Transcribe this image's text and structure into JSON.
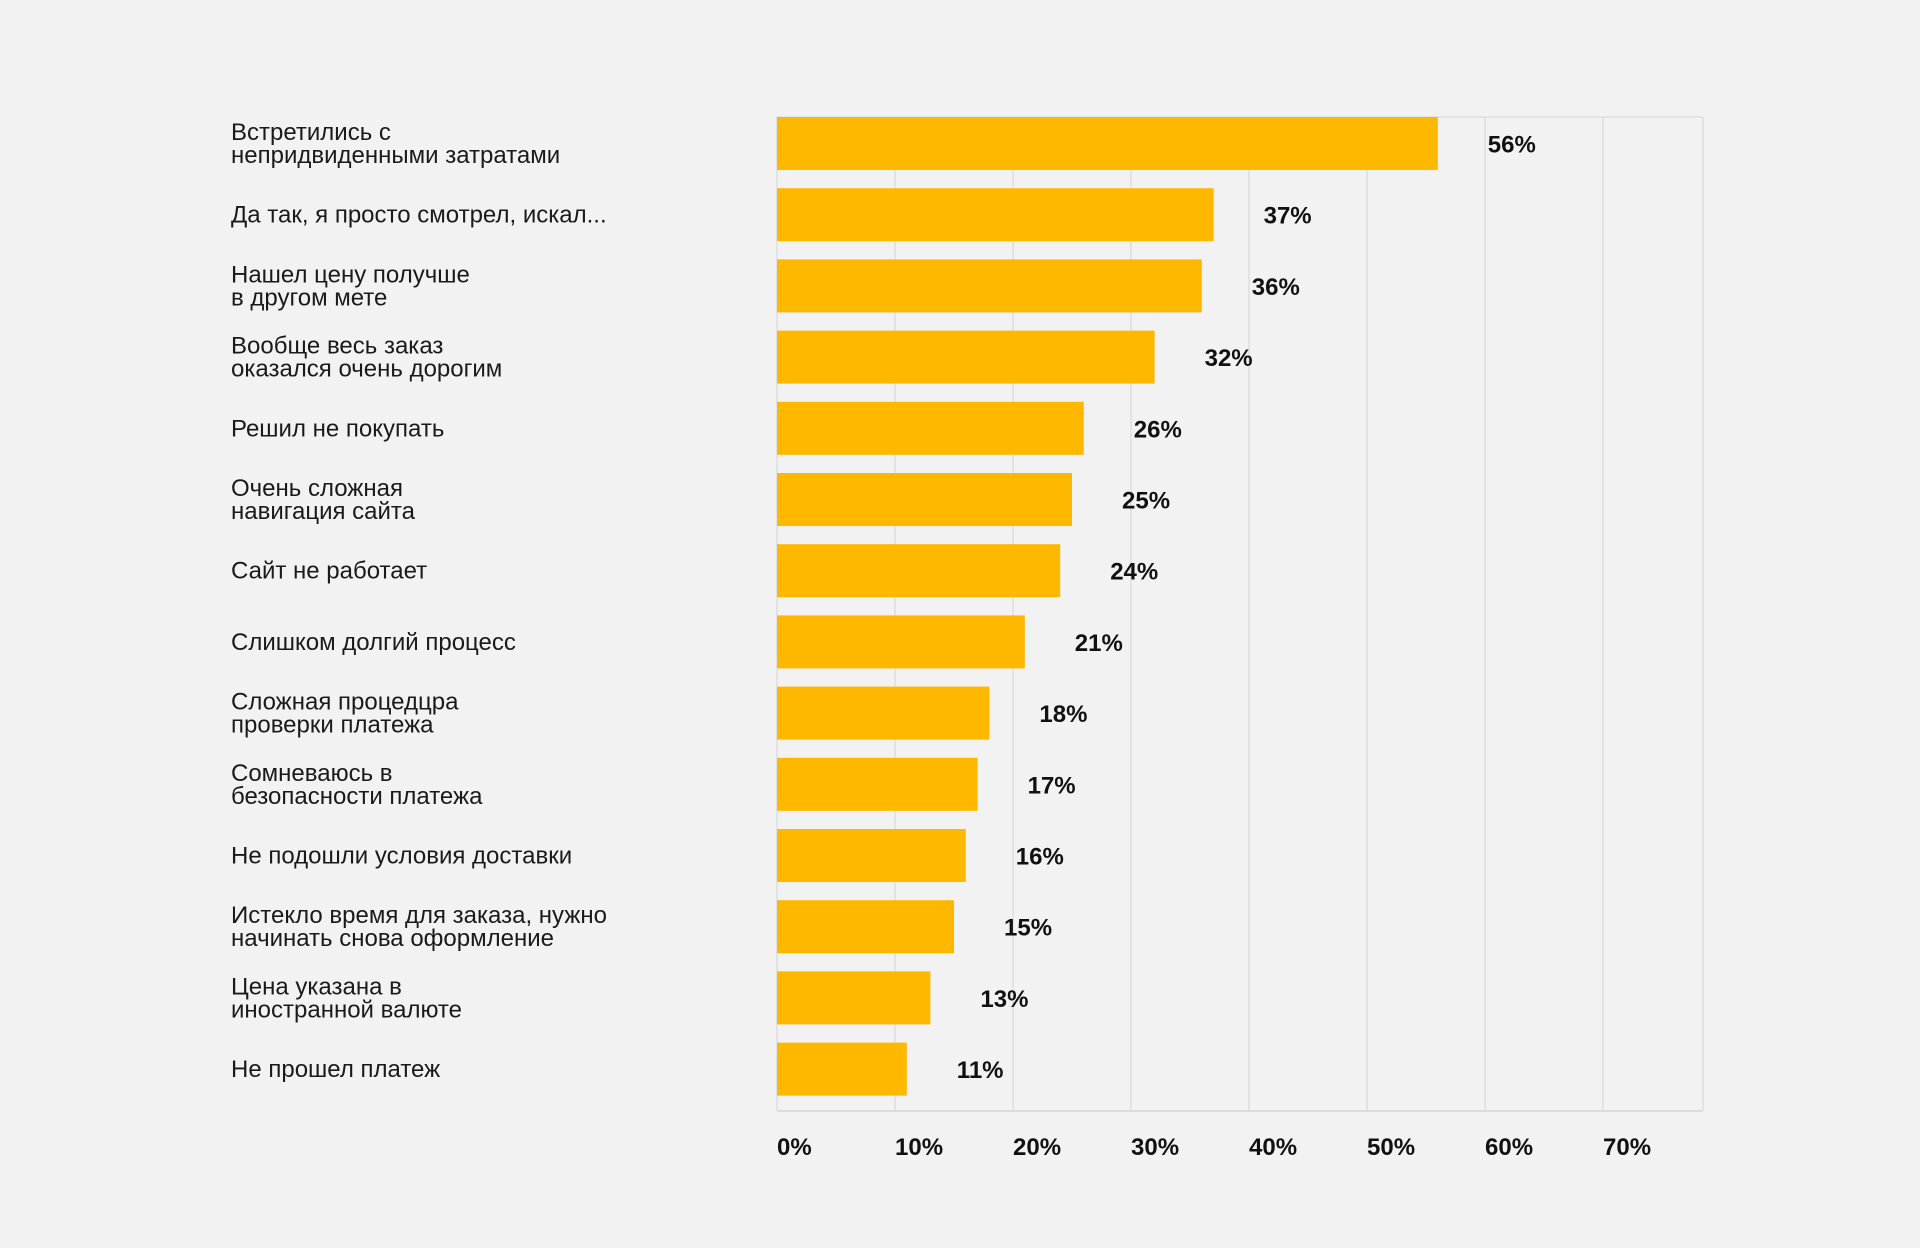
{
  "chart_data": {
    "type": "bar",
    "orientation": "horizontal",
    "title": "",
    "xlabel": "",
    "ylabel": "",
    "xlim": [
      0,
      78
    ],
    "grid": true,
    "bar_color": "#ffb800",
    "grid_color": "#d4d4d6",
    "categories": [
      [
        "Встретились с",
        "непридвиденными затратами"
      ],
      [
        "Да так, я просто смотрел, искал..."
      ],
      [
        "Нашел цену получше",
        "в другом мете"
      ],
      [
        "Вообще весь заказ",
        "оказался очень дорогим"
      ],
      [
        "Решил не покупать"
      ],
      [
        "Очень сложная",
        "навигация сайта"
      ],
      [
        "Сайт не работает"
      ],
      [
        "Слишком долгий процесс"
      ],
      [
        "Сложная процедцра",
        "проверки платежа"
      ],
      [
        "Сомневаюсь в",
        "безопасности платежа"
      ],
      [
        "Не подошли условия доставки"
      ],
      [
        "Истекло время для заказа, нужно",
        "начинать снова оформление"
      ],
      [
        "Цена указана в",
        "иностранной валюте"
      ],
      [
        "Не прошел платеж"
      ]
    ],
    "values": [
      56,
      37,
      36,
      32,
      26,
      25,
      24,
      21,
      18,
      17,
      16,
      15,
      13,
      11
    ],
    "value_labels": [
      "56%",
      "37%",
      "36%",
      "32%",
      "26%",
      "25%",
      "24%",
      "21%",
      "18%",
      "17%",
      "16%",
      "15%",
      "13%",
      "11%"
    ],
    "ticks": [
      0,
      10,
      20,
      30,
      40,
      50,
      60,
      70
    ],
    "tick_labels": [
      "0%",
      "10%",
      "20%",
      "30%",
      "40%",
      "50%",
      "60%",
      "70%"
    ]
  }
}
